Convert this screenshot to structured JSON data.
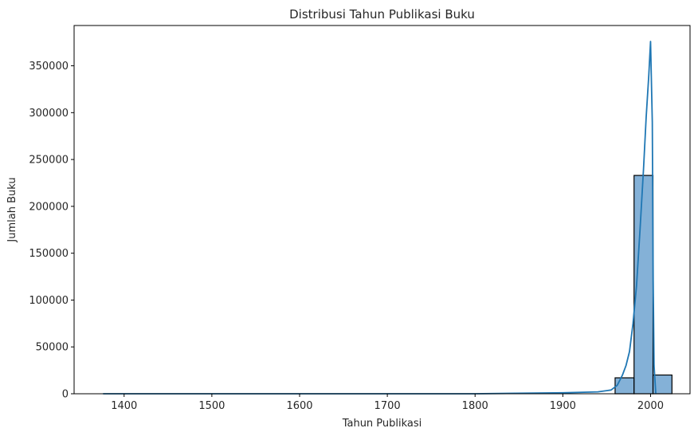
{
  "chart_data": {
    "type": "bar",
    "title": "Distribusi Tahun Publikasi Buku",
    "xlabel": "Tahun Publikasi",
    "ylabel": "Jumlah Buku",
    "xlim": [
      1343,
      2045
    ],
    "ylim": [
      0,
      393000
    ],
    "x_ticks": [
      "1400",
      "1500",
      "1600",
      "1700",
      "1800",
      "1900",
      "2000"
    ],
    "y_ticks": [
      "0",
      "50000",
      "100000",
      "150000",
      "200000",
      "250000",
      "300000",
      "350000"
    ],
    "grid": false,
    "bin_width": 21.6,
    "bars": [
      {
        "x0": 1959.6,
        "x1": 1981.2,
        "value": 17000
      },
      {
        "x0": 1981.2,
        "x1": 2002.8,
        "value": 233000
      },
      {
        "x0": 2002.8,
        "x1": 2024.4,
        "value": 20000
      }
    ],
    "kde": {
      "x": [
        1376,
        1500,
        1600,
        1700,
        1800,
        1900,
        1940,
        1955,
        1962,
        1968,
        1972,
        1976,
        1980,
        1984,
        1988,
        1992,
        1995,
        1998,
        2000,
        2002,
        2003,
        2004,
        2006
      ],
      "y": [
        0,
        0,
        0,
        0,
        0,
        1000,
        2000,
        4000,
        9000,
        20000,
        30000,
        45000,
        75000,
        115000,
        175000,
        240000,
        295000,
        340000,
        376000,
        290000,
        120000,
        30000,
        0
      ]
    },
    "colors": {
      "bar_fill": "#6fa3d0",
      "bar_edge": "#000000",
      "kde_line": "#1f77b4"
    }
  }
}
